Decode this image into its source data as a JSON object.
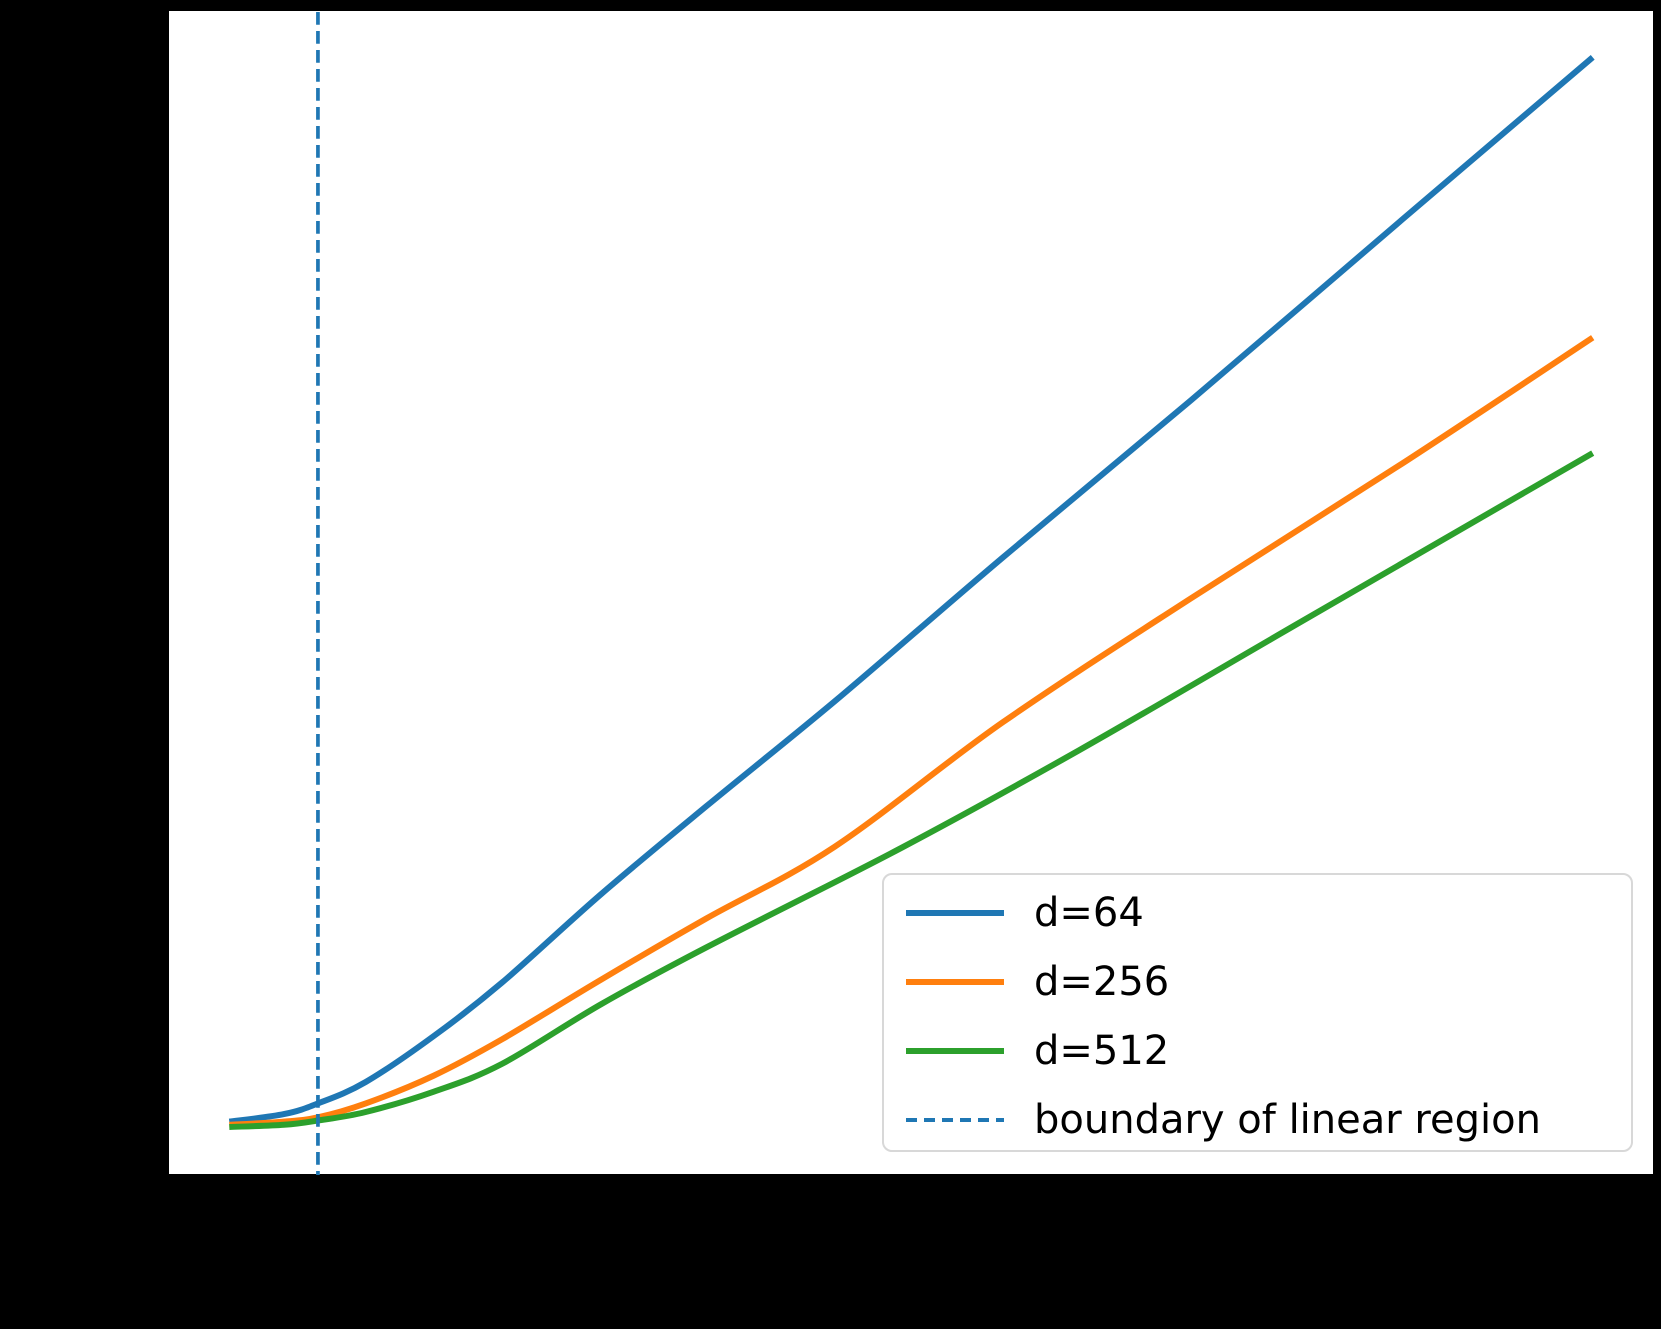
{
  "figure": {
    "background_color": "#000000",
    "plot_background_color": "#ffffff",
    "spine_color": "#000000"
  },
  "chart_data": {
    "type": "line",
    "title": "",
    "grid": false,
    "legend_position": "lower right",
    "axis_tick_labels_visible": false,
    "x_range_norm": [
      0,
      1
    ],
    "y_range_norm": [
      0,
      1
    ],
    "series": [
      {
        "name": "d=64",
        "color": "#1f77b4",
        "style": "solid",
        "x": [
          0,
          0.04,
          0.065,
          0.1,
          0.15,
          0.2,
          0.273,
          0.35,
          0.444,
          0.567,
          0.705,
          0.86,
          1.0
        ],
        "y": [
          0.005,
          0.012,
          0.022,
          0.042,
          0.085,
          0.135,
          0.218,
          0.3,
          0.398,
          0.532,
          0.679,
          0.848,
          1.0
        ]
      },
      {
        "name": "d=256",
        "color": "#ff7f0e",
        "style": "solid",
        "x": [
          0,
          0.04,
          0.065,
          0.1,
          0.15,
          0.2,
          0.273,
          0.35,
          0.444,
          0.567,
          0.705,
          0.86,
          1.0
        ],
        "y": [
          0.002,
          0.005,
          0.009,
          0.022,
          0.048,
          0.082,
          0.138,
          0.195,
          0.262,
          0.378,
          0.494,
          0.62,
          0.738
        ]
      },
      {
        "name": "d=512",
        "color": "#2ca02c",
        "style": "solid",
        "x": [
          0,
          0.04,
          0.065,
          0.1,
          0.15,
          0.2,
          0.273,
          0.35,
          0.493,
          0.623,
          0.787,
          1.0
        ],
        "y": [
          0.0,
          0.002,
          0.006,
          0.014,
          0.033,
          0.059,
          0.115,
          0.168,
          0.261,
          0.352,
          0.473,
          0.63
        ]
      }
    ],
    "vline": {
      "label": "boundary of linear region",
      "x": 0.065,
      "color": "#1f77b4",
      "style": "dashed"
    },
    "legend": {
      "entries": [
        {
          "label": "d=64",
          "color": "#1f77b4",
          "line_style": "solid"
        },
        {
          "label": "d=256",
          "color": "#ff7f0e",
          "line_style": "solid"
        },
        {
          "label": "d=512",
          "color": "#2ca02c",
          "line_style": "solid"
        },
        {
          "label": "boundary of linear region",
          "color": "#1f77b4",
          "line_style": "dashed"
        }
      ]
    }
  }
}
